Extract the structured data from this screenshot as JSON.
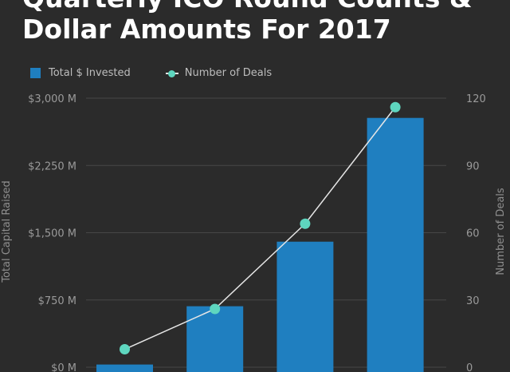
{
  "chart_data": {
    "type": "bar",
    "title_line1": "Quarterly ICO Round Counts &",
    "title_line2": "Dollar Amounts For 2017",
    "ylabel": "Total Capital Raised",
    "y2label": "Number of Deals",
    "ylim": [
      0,
      3000
    ],
    "y2lim": [
      0,
      120
    ],
    "y_ticks": [
      0,
      750,
      1500,
      2250,
      3000
    ],
    "y_tick_labels": [
      "$0 M",
      "$750 M",
      "$1,500 M",
      "$2,250 M",
      "$3,000 M"
    ],
    "y2_ticks": [
      0,
      30,
      60,
      90,
      120
    ],
    "y2_tick_labels": [
      "0",
      "30",
      "60",
      "90",
      "120"
    ],
    "grid": true,
    "legend_position": "top-left",
    "series": [
      {
        "name": "Total $ Invested",
        "kind": "bar",
        "axis": "left",
        "color": "#1f7fc0",
        "values": [
          30,
          680,
          1400,
          2780
        ]
      },
      {
        "name": "Number of Deals",
        "kind": "line",
        "axis": "right",
        "color": "#5ed6bf",
        "line_color": "#e6e6e6",
        "values": [
          8,
          26,
          64,
          116
        ]
      }
    ]
  }
}
